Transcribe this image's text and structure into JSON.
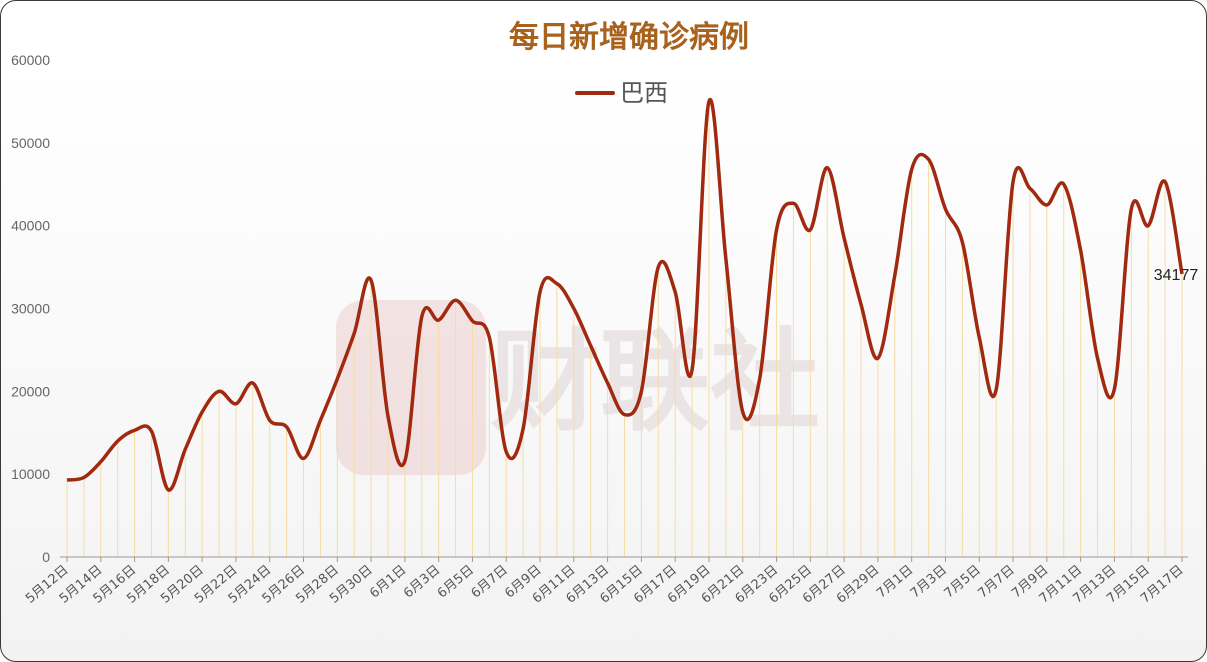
{
  "chart_data": {
    "type": "line",
    "title": "每日新增确诊病例",
    "legend": {
      "position": "top-center"
    },
    "series": [
      {
        "name": "巴西",
        "color": "#a0290f",
        "values": [
          9300,
          9600,
          11500,
          14000,
          15300,
          15200,
          8100,
          13000,
          17500,
          20000,
          18500,
          21000,
          16500,
          15700,
          11900,
          16500,
          21500,
          27000,
          33400,
          17000,
          11600,
          29000,
          28600,
          31000,
          28500,
          26500,
          12700,
          15500,
          32000,
          33000,
          30000,
          25500,
          21000,
          17200,
          20000,
          35000,
          32000,
          22600,
          55000,
          36000,
          17500,
          21500,
          39500,
          42700,
          39500,
          47000,
          38500,
          30500,
          24000,
          34000,
          46800,
          48000,
          42000,
          38000,
          26500,
          20200,
          45300,
          44500,
          42500,
          45000,
          37000,
          24000,
          20300,
          42000,
          40000,
          45300,
          34177
        ]
      }
    ],
    "x_ticks": [
      "5月12日",
      "5月14日",
      "5月16日",
      "5月18日",
      "5月20日",
      "5月22日",
      "5月24日",
      "5月26日",
      "5月28日",
      "5月30日",
      "6月1日",
      "6月3日",
      "6月5日",
      "6月7日",
      "6月9日",
      "6月11日",
      "6月13日",
      "6月15日",
      "6月17日",
      "6月19日",
      "6月21日",
      "6月23日",
      "6月25日",
      "6月27日",
      "6月29日",
      "7月1日",
      "7月3日",
      "7月5日",
      "7月7日",
      "7月9日",
      "7月11日",
      "7月13日",
      "7月15日",
      "7月17日"
    ],
    "y_ticks": [
      "0",
      "10000",
      "20000",
      "30000",
      "40000",
      "50000",
      "60000"
    ],
    "ylim": [
      0,
      60000
    ],
    "last_label": "34177",
    "grid": "vertical-per-point",
    "watermark": "财联社"
  }
}
